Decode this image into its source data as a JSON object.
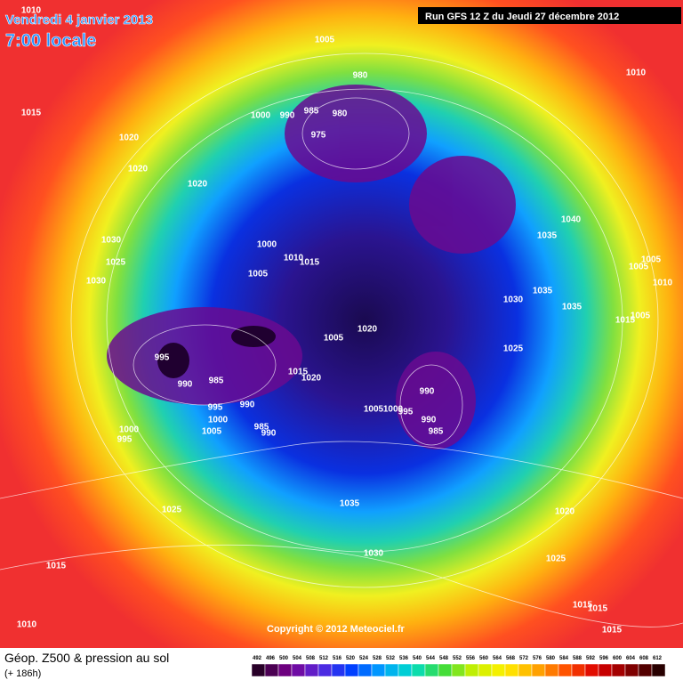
{
  "header": {
    "date": "Vendredi 4 janvier 2013",
    "time": "7:00 locale",
    "run": "Run GFS 12 Z du Jeudi 27 décembre 2012"
  },
  "isobar_labels": [
    "1010",
    "1005",
    "1010",
    "1015",
    "1020",
    "1020",
    "1020",
    "980",
    "985",
    "980",
    "975",
    "1000",
    "990",
    "1030",
    "1025",
    "1030",
    "1000",
    "1010",
    "1015",
    "1005",
    "1040",
    "1035",
    "1005",
    "1005",
    "1010",
    "1035",
    "1030",
    "1035",
    "1005",
    "1015",
    "1020",
    "1005",
    "1025",
    "995",
    "990",
    "985",
    "1015",
    "1020",
    "990",
    "995",
    "990",
    "1000",
    "1005",
    "1000",
    "995",
    "990",
    "985",
    "1005",
    "985",
    "990",
    "1000",
    "995",
    "1035",
    "1025",
    "1020",
    "1030",
    "1025",
    "1015",
    "1010",
    "1015",
    "1015",
    "1015"
  ],
  "copyright": "Copyright © 2012 Meteociel.fr",
  "legend": {
    "title": "Géop. Z500 & pression au sol",
    "subtitle": "(+ 186h)",
    "scale": [
      492,
      496,
      500,
      504,
      508,
      512,
      516,
      520,
      524,
      528,
      532,
      536,
      540,
      544,
      548,
      552,
      556,
      560,
      564,
      568,
      572,
      576,
      580,
      584,
      588,
      592,
      596,
      600,
      604,
      608,
      612
    ]
  }
}
